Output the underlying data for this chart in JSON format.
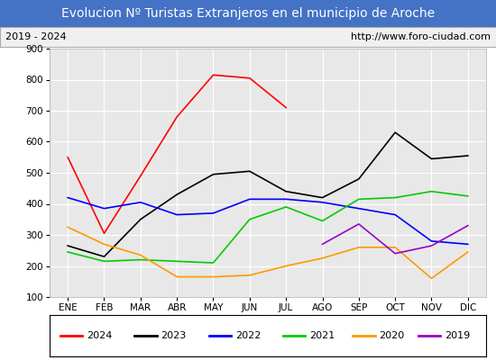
{
  "title": "Evolucion Nº Turistas Extranjeros en el municipio de Aroche",
  "subtitle_left": "2019 - 2024",
  "subtitle_right": "http://www.foro-ciudad.com",
  "months": [
    "ENE",
    "FEB",
    "MAR",
    "ABR",
    "MAY",
    "JUN",
    "JUL",
    "AGO",
    "SEP",
    "OCT",
    "NOV",
    "DIC"
  ],
  "ylim": [
    100,
    900
  ],
  "yticks": [
    100,
    200,
    300,
    400,
    500,
    600,
    700,
    800,
    900
  ],
  "series": {
    "2024": {
      "color": "#ff0000",
      "data": [
        550,
        305,
        490,
        680,
        815,
        805,
        710,
        null,
        null,
        null,
        null,
        null
      ]
    },
    "2023": {
      "color": "#000000",
      "data": [
        265,
        230,
        350,
        430,
        495,
        505,
        440,
        420,
        480,
        630,
        545,
        555
      ]
    },
    "2022": {
      "color": "#0000ff",
      "data": [
        420,
        385,
        405,
        365,
        370,
        415,
        415,
        405,
        385,
        365,
        280,
        270
      ]
    },
    "2021": {
      "color": "#00cc00",
      "data": [
        245,
        215,
        220,
        215,
        210,
        350,
        390,
        345,
        415,
        420,
        440,
        425
      ]
    },
    "2020": {
      "color": "#ff9900",
      "data": [
        325,
        270,
        235,
        165,
        165,
        170,
        200,
        225,
        260,
        260,
        160,
        245
      ]
    },
    "2019": {
      "color": "#9900cc",
      "data": [
        null,
        null,
        null,
        null,
        null,
        null,
        null,
        270,
        335,
        240,
        265,
        330
      ]
    }
  },
  "title_bg_color": "#4472c4",
  "title_text_color": "white",
  "plot_bg_color": "#e8e8e8",
  "grid_color": "white",
  "subtitle_bg_color": "#f0f0f0",
  "border_color": "#aaaaaa",
  "title_fontsize": 10,
  "subtitle_fontsize": 8,
  "tick_fontsize": 7.5,
  "legend_fontsize": 8
}
